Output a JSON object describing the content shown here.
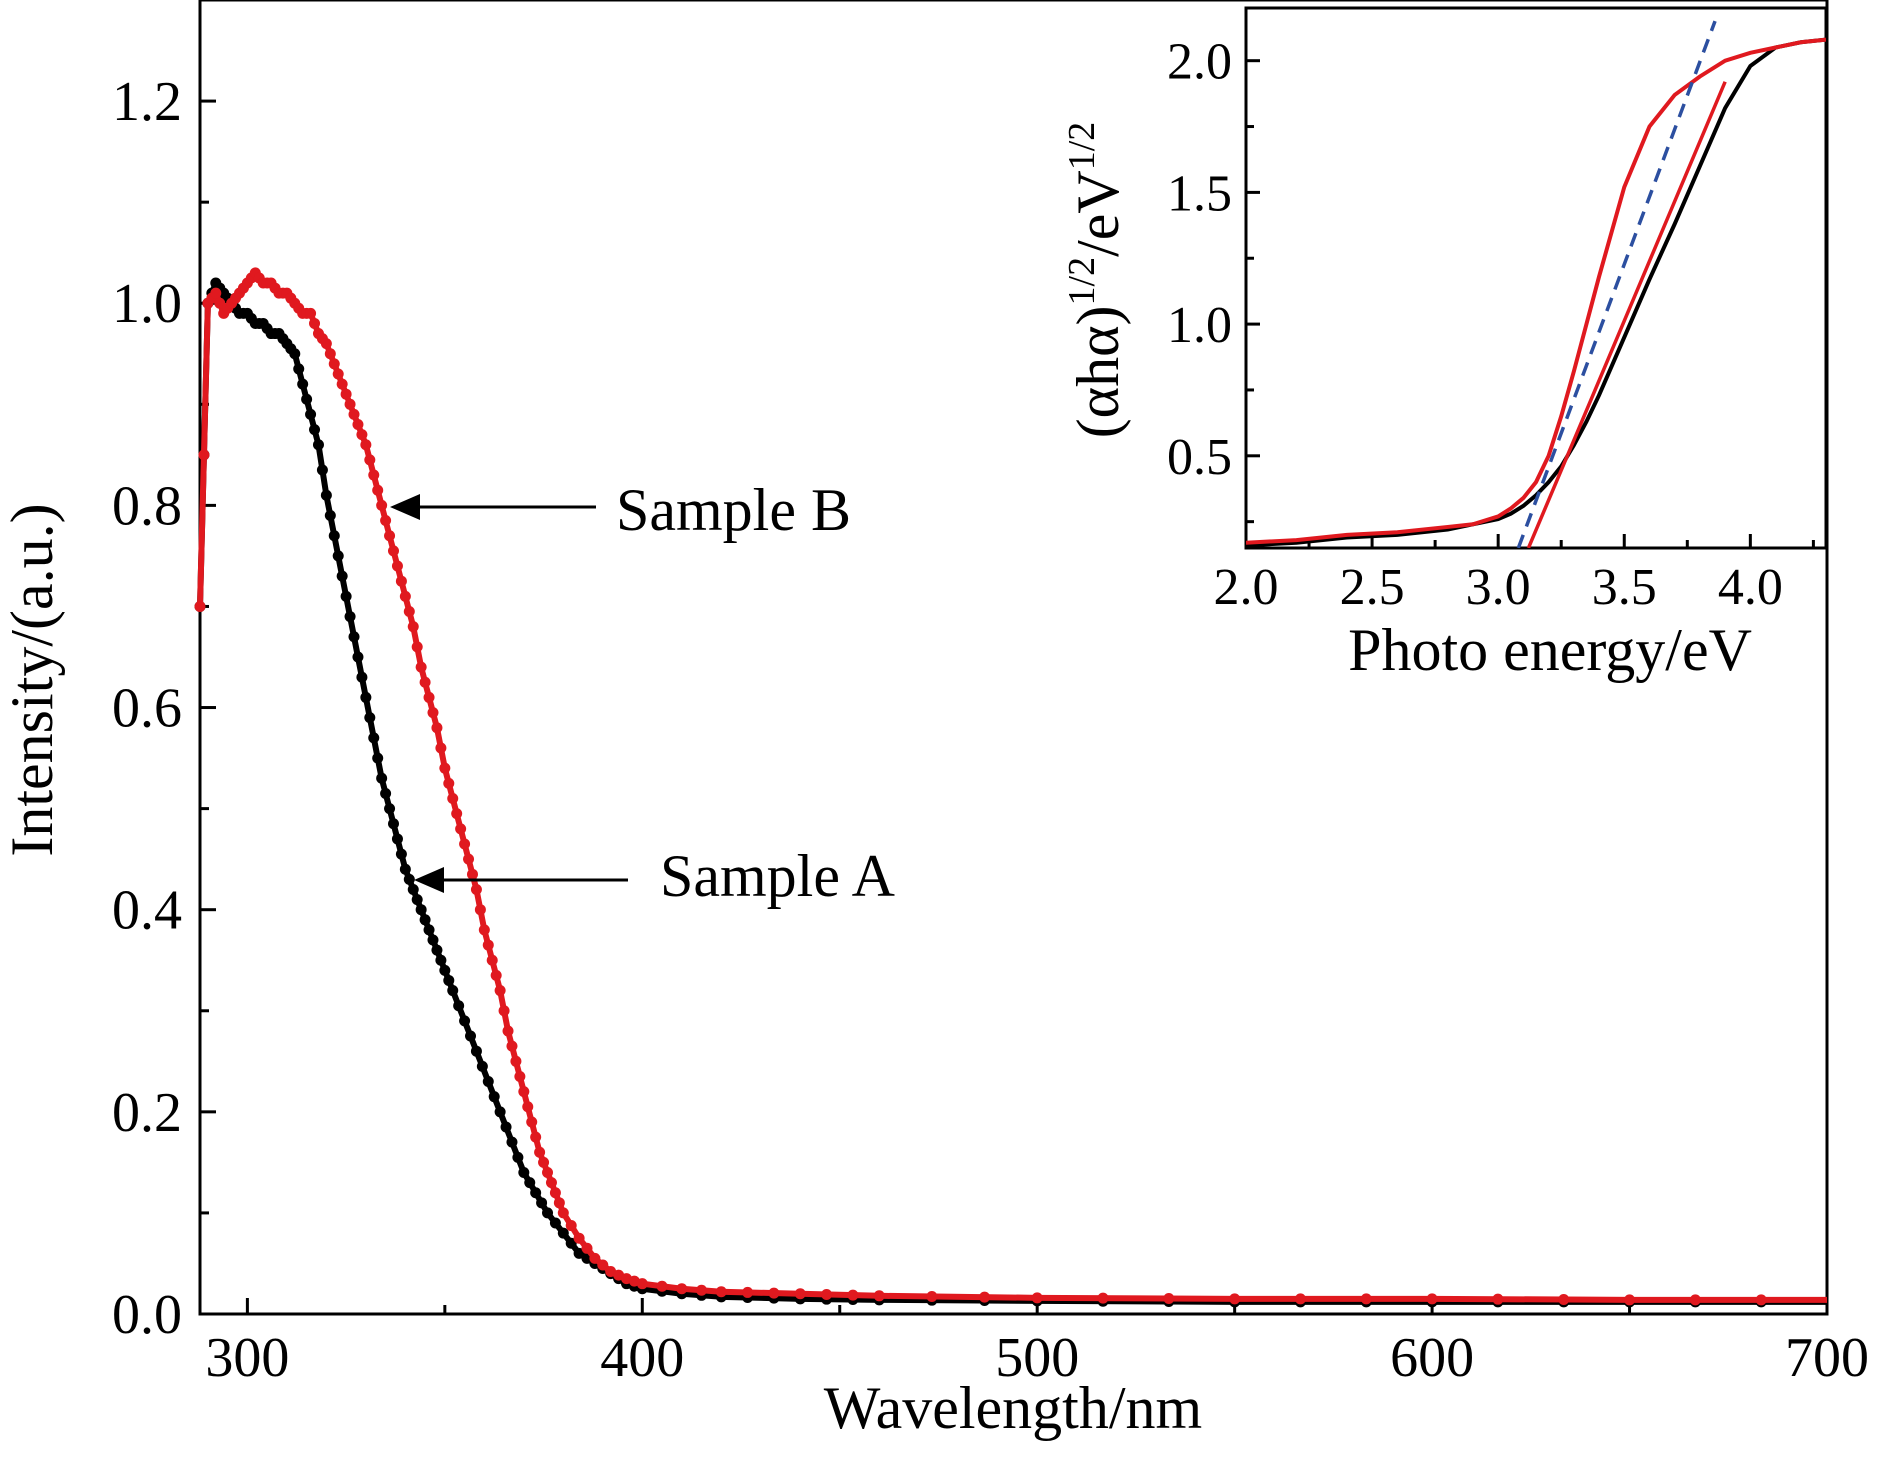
{
  "chart_data": [
    {
      "type": "scatter",
      "xlabel": "Wavelength/nm",
      "ylabel": "Intensity/(a.u.)",
      "xlim": [
        288,
        700
      ],
      "ylim": [
        0.0,
        1.3
      ],
      "xticks": [
        "300",
        "400",
        "500",
        "600",
        "700"
      ],
      "yticks": [
        "0.0",
        "0.2",
        "0.4",
        "0.6",
        "0.8",
        "1.0",
        "1.2"
      ],
      "grid": false,
      "legend": "none",
      "series": [
        {
          "name": "Sample A",
          "color": "#000000",
          "x": [
            288,
            290,
            292,
            294,
            296,
            298,
            300,
            302,
            304,
            306,
            308,
            310,
            312,
            314,
            316,
            318,
            320,
            322,
            324,
            326,
            328,
            330,
            332,
            334,
            336,
            338,
            340,
            342,
            344,
            346,
            348,
            350,
            352,
            355,
            358,
            361,
            364,
            367,
            370,
            373,
            376,
            380,
            384,
            388,
            392,
            396,
            400,
            410,
            420,
            440,
            460,
            500,
            550,
            600,
            650,
            700
          ],
          "y": [
            0.7,
            1.0,
            1.02,
            1.01,
            1.0,
            0.99,
            0.99,
            0.98,
            0.98,
            0.97,
            0.97,
            0.96,
            0.95,
            0.92,
            0.89,
            0.86,
            0.81,
            0.77,
            0.73,
            0.69,
            0.65,
            0.61,
            0.57,
            0.53,
            0.5,
            0.47,
            0.44,
            0.42,
            0.4,
            0.38,
            0.36,
            0.34,
            0.32,
            0.29,
            0.26,
            0.23,
            0.2,
            0.17,
            0.14,
            0.12,
            0.1,
            0.08,
            0.06,
            0.05,
            0.04,
            0.03,
            0.025,
            0.02,
            0.017,
            0.015,
            0.014,
            0.013,
            0.012,
            0.012,
            0.012,
            0.012
          ]
        },
        {
          "name": "Sample B",
          "color": "#e0191f",
          "x": [
            288,
            290,
            292,
            294,
            296,
            298,
            300,
            302,
            304,
            306,
            308,
            310,
            312,
            314,
            316,
            318,
            320,
            322,
            324,
            326,
            328,
            330,
            332,
            334,
            336,
            338,
            340,
            342,
            344,
            346,
            348,
            350,
            352,
            354,
            356,
            358,
            360,
            362,
            364,
            366,
            368,
            370,
            372,
            374,
            376,
            378,
            380,
            384,
            388,
            392,
            396,
            400,
            410,
            420,
            440,
            460,
            500,
            550,
            600,
            650,
            700
          ],
          "y": [
            0.7,
            1.0,
            1.01,
            0.99,
            1.0,
            1.01,
            1.02,
            1.03,
            1.02,
            1.02,
            1.01,
            1.01,
            1.0,
            0.99,
            0.99,
            0.97,
            0.96,
            0.94,
            0.92,
            0.9,
            0.88,
            0.86,
            0.83,
            0.8,
            0.77,
            0.74,
            0.71,
            0.68,
            0.64,
            0.61,
            0.58,
            0.54,
            0.51,
            0.48,
            0.45,
            0.42,
            0.38,
            0.35,
            0.32,
            0.28,
            0.25,
            0.22,
            0.19,
            0.16,
            0.14,
            0.12,
            0.1,
            0.075,
            0.055,
            0.042,
            0.035,
            0.03,
            0.025,
            0.022,
            0.02,
            0.018,
            0.016,
            0.015,
            0.015,
            0.014,
            0.014
          ]
        }
      ],
      "annotations": [
        {
          "text": "Sample B",
          "x": 335,
          "y": 0.8
        },
        {
          "text": "Sample A",
          "x": 342,
          "y": 0.43
        }
      ]
    },
    {
      "type": "line",
      "xlabel": "Photo energy/eV",
      "ylabel": "(αhα)1/2/eV1/2",
      "xlim": [
        2.0,
        4.3
      ],
      "ylim": [
        0.15,
        2.2
      ],
      "xticks": [
        "2.0",
        "2.5",
        "3.0",
        "3.5",
        "4.0"
      ],
      "yticks": [
        "0.5",
        "1.0",
        "1.5",
        "2.0"
      ],
      "grid": false,
      "legend": "none",
      "series": [
        {
          "color": "#000000",
          "x": [
            2.0,
            2.2,
            2.4,
            2.6,
            2.8,
            2.9,
            3.0,
            3.05,
            3.1,
            3.15,
            3.2,
            3.25,
            3.3,
            3.35,
            3.4,
            3.5,
            3.6,
            3.7,
            3.8,
            3.9,
            4.0,
            4.1,
            4.2,
            4.3
          ],
          "y": [
            0.16,
            0.17,
            0.19,
            0.2,
            0.22,
            0.24,
            0.26,
            0.28,
            0.31,
            0.35,
            0.4,
            0.46,
            0.54,
            0.63,
            0.73,
            0.95,
            1.17,
            1.38,
            1.6,
            1.82,
            1.98,
            2.05,
            2.07,
            2.08
          ]
        },
        {
          "color": "#e0191f",
          "x": [
            2.0,
            2.2,
            2.4,
            2.6,
            2.8,
            2.9,
            3.0,
            3.05,
            3.1,
            3.15,
            3.2,
            3.25,
            3.3,
            3.35,
            3.4,
            3.5,
            3.6,
            3.7,
            3.8,
            3.9,
            4.0,
            4.1,
            4.2,
            4.3
          ],
          "y": [
            0.17,
            0.18,
            0.2,
            0.21,
            0.23,
            0.24,
            0.27,
            0.3,
            0.34,
            0.4,
            0.5,
            0.65,
            0.82,
            1.0,
            1.18,
            1.52,
            1.75,
            1.87,
            1.94,
            2.0,
            2.03,
            2.05,
            2.07,
            2.08
          ]
        },
        {
          "color": "#e0191f",
          "style": "solid",
          "x": [
            3.12,
            3.9
          ],
          "y": [
            0.15,
            1.92
          ]
        },
        {
          "color": "#2c4fa0",
          "style": "dashed",
          "x": [
            3.08,
            3.86
          ],
          "y": [
            0.15,
            2.15
          ]
        }
      ]
    }
  ]
}
